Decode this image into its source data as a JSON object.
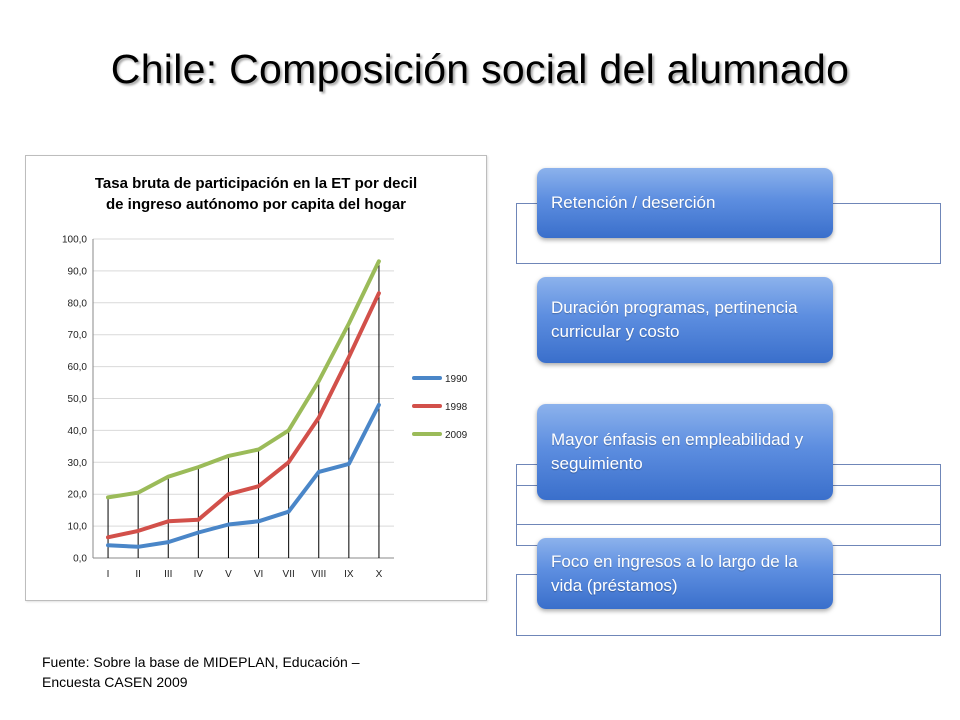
{
  "slide": {
    "title": "Chile: Composición social del alumnado",
    "source_line1": "Fuente: Sobre la base de MIDEPLAN, Educación –",
    "source_line2": "Encuesta CASEN 2009"
  },
  "boxes": [
    {
      "label": "Retención / deserción"
    },
    {
      "label": "Duración programas, pertinencia curricular y costo"
    },
    {
      "label": "Mayor énfasis en empleabilidad y seguimiento"
    },
    {
      "label": "Foco en ingresos a lo largo de la vida (préstamos)"
    }
  ],
  "colors": {
    "series_1990": "#4a86c8",
    "series_1998": "#d2504a",
    "series_2009": "#9bbb59",
    "box_border": "#6f86b8",
    "box_fill_top": "#8cb2ec",
    "box_fill_bottom": "#3a6fcb"
  },
  "chart_data": {
    "type": "line",
    "title_line1": "Tasa bruta de participación en la ET por decil",
    "title_line2": "de ingreso autónomo por capita del hogar",
    "categories": [
      "I",
      "II",
      "III",
      "IV",
      "V",
      "VI",
      "VII",
      "VIII",
      "IX",
      "X"
    ],
    "series": [
      {
        "name": "1990",
        "values": [
          4.0,
          3.5,
          5.0,
          8.0,
          10.5,
          11.5,
          14.5,
          27.0,
          29.5,
          48.0
        ]
      },
      {
        "name": "1998",
        "values": [
          6.5,
          8.5,
          11.5,
          12.0,
          20.0,
          22.5,
          30.0,
          44.0,
          63.0,
          83.0
        ]
      },
      {
        "name": "2009",
        "values": [
          19.0,
          20.5,
          25.5,
          28.5,
          32.0,
          34.0,
          40.0,
          55.5,
          73.5,
          93.0
        ]
      }
    ],
    "y_ticks": [
      "0,0",
      "10,0",
      "20,0",
      "30,0",
      "40,0",
      "50,0",
      "60,0",
      "70,0",
      "80,0",
      "90,0",
      "100,0"
    ],
    "ylim": [
      0,
      100
    ],
    "grid": true,
    "legend_position": "right"
  }
}
